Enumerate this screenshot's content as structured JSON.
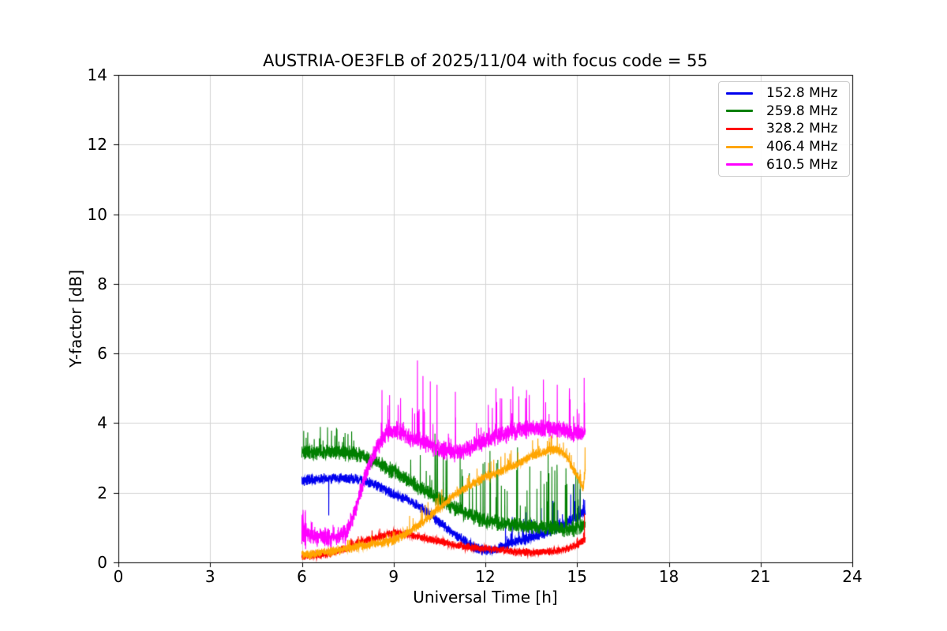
{
  "chart_data": {
    "type": "line",
    "title": "AUSTRIA-OE3FLB of 2025/11/04 with focus code = 55",
    "xlabel": "Universal Time [h]",
    "ylabel": "Y-factor [dB]",
    "xlim": [
      0,
      24
    ],
    "ylim": [
      0,
      14
    ],
    "xticks": [
      0,
      3,
      6,
      9,
      12,
      15,
      18,
      21,
      24
    ],
    "yticks": [
      0,
      2,
      4,
      6,
      8,
      10,
      12,
      14
    ],
    "grid": true,
    "grid_color": "#d4d4d4",
    "axis_color": "#000000",
    "legend_position": "upper right",
    "time_range": [
      6.0,
      15.27
    ],
    "series": [
      {
        "name": "152.8 MHz",
        "color": "#0000ee",
        "trend": [
          [
            6,
            2.35
          ],
          [
            6.5,
            2.4
          ],
          [
            7,
            2.4
          ],
          [
            7.5,
            2.4
          ],
          [
            8,
            2.35
          ],
          [
            8.5,
            2.2
          ],
          [
            9,
            1.95
          ],
          [
            9.5,
            1.8
          ],
          [
            10,
            1.5
          ],
          [
            10.5,
            1.15
          ],
          [
            11,
            0.8
          ],
          [
            11.5,
            0.5
          ],
          [
            11.9,
            0.35
          ],
          [
            12.3,
            0.35
          ],
          [
            12.7,
            0.5
          ],
          [
            13,
            0.6
          ],
          [
            13.5,
            0.7
          ],
          [
            14,
            0.85
          ],
          [
            14.5,
            1.05
          ],
          [
            15,
            1.3
          ],
          [
            15.27,
            1.5
          ]
        ],
        "noise": 0.17,
        "spikes": [
          {
            "t0": 12.6,
            "t1": 15.27,
            "p": 0.045,
            "amp": 0.85
          }
        ],
        "peaks": [
          [
            6.88,
            1.35
          ],
          [
            14.9,
            2.25
          ],
          [
            15.1,
            2.1
          ]
        ]
      },
      {
        "name": "259.8 MHz",
        "color": "#007f00",
        "trend": [
          [
            6,
            3.15
          ],
          [
            7,
            3.15
          ],
          [
            7.6,
            3.15
          ],
          [
            8,
            3.05
          ],
          [
            8.5,
            2.85
          ],
          [
            9,
            2.6
          ],
          [
            9.5,
            2.35
          ],
          [
            10,
            2.05
          ],
          [
            10.5,
            1.8
          ],
          [
            11,
            1.55
          ],
          [
            11.5,
            1.35
          ],
          [
            12,
            1.2
          ],
          [
            12.5,
            1.1
          ],
          [
            13,
            1.05
          ],
          [
            13.5,
            1.0
          ],
          [
            14,
            1.0
          ],
          [
            14.5,
            0.95
          ],
          [
            15,
            0.95
          ],
          [
            15.27,
            1.1
          ]
        ],
        "noise": 0.25,
        "spikes": [
          {
            "t0": 6.0,
            "t1": 7.7,
            "p": 0.07,
            "amp": 0.75
          },
          {
            "t0": 9.5,
            "t1": 15.27,
            "p": 0.05,
            "amp": 1.85
          }
        ],
        "peaks": [
          [
            12.15,
            3.2
          ],
          [
            13.05,
            3.3
          ],
          [
            14.05,
            3.1
          ]
        ]
      },
      {
        "name": "328.2 MHz",
        "color": "#ff0000",
        "trend": [
          [
            6,
            0.18
          ],
          [
            6.5,
            0.2
          ],
          [
            7,
            0.28
          ],
          [
            7.5,
            0.4
          ],
          [
            8,
            0.6
          ],
          [
            8.5,
            0.72
          ],
          [
            9,
            0.85
          ],
          [
            9.5,
            0.8
          ],
          [
            10,
            0.7
          ],
          [
            10.5,
            0.6
          ],
          [
            11,
            0.5
          ],
          [
            11.5,
            0.44
          ],
          [
            12,
            0.4
          ],
          [
            12.5,
            0.35
          ],
          [
            13,
            0.3
          ],
          [
            13.5,
            0.28
          ],
          [
            14,
            0.3
          ],
          [
            14.5,
            0.35
          ],
          [
            15,
            0.5
          ],
          [
            15.27,
            0.65
          ]
        ],
        "noise": 0.13,
        "spikes": [
          {
            "t0": 7.6,
            "t1": 8.6,
            "p": 0.06,
            "amp": 0.25
          },
          {
            "t0": 14.9,
            "t1": 15.27,
            "p": 0.05,
            "amp": 0.3
          }
        ],
        "peaks": [
          [
            15.24,
            1.4
          ]
        ]
      },
      {
        "name": "406.4 MHz",
        "color": "#ffa500",
        "trend": [
          [
            6,
            0.22
          ],
          [
            6.5,
            0.26
          ],
          [
            7,
            0.32
          ],
          [
            7.5,
            0.38
          ],
          [
            8,
            0.48
          ],
          [
            8.5,
            0.55
          ],
          [
            9,
            0.62
          ],
          [
            9.5,
            0.85
          ],
          [
            10,
            1.2
          ],
          [
            10.5,
            1.55
          ],
          [
            11,
            1.95
          ],
          [
            11.5,
            2.2
          ],
          [
            12,
            2.45
          ],
          [
            12.5,
            2.6
          ],
          [
            13,
            2.8
          ],
          [
            13.5,
            3.05
          ],
          [
            14,
            3.2
          ],
          [
            14.3,
            3.25
          ],
          [
            14.6,
            3.1
          ],
          [
            15,
            2.5
          ],
          [
            15.2,
            2.15
          ],
          [
            15.27,
            2.6
          ]
        ],
        "noise": 0.15,
        "spikes": [
          {
            "t0": 7.3,
            "t1": 9.5,
            "p": 0.05,
            "amp": 0.3
          },
          {
            "t0": 9.5,
            "t1": 15.27,
            "p": 0.045,
            "amp": 0.5
          }
        ],
        "peaks": [
          [
            15.26,
            3.3
          ]
        ]
      },
      {
        "name": "610.5 MHz",
        "color": "#ff00ff",
        "trend": [
          [
            6,
            1.15
          ],
          [
            6.15,
            0.85
          ],
          [
            6.5,
            0.72
          ],
          [
            7,
            0.7
          ],
          [
            7.4,
            0.8
          ],
          [
            7.5,
            0.95
          ],
          [
            7.75,
            1.5
          ],
          [
            8,
            2.3
          ],
          [
            8.25,
            2.9
          ],
          [
            8.5,
            3.35
          ],
          [
            8.75,
            3.65
          ],
          [
            9,
            3.8
          ],
          [
            9.25,
            3.75
          ],
          [
            9.5,
            3.6
          ],
          [
            10,
            3.45
          ],
          [
            10.5,
            3.25
          ],
          [
            11,
            3.15
          ],
          [
            11.5,
            3.3
          ],
          [
            12,
            3.5
          ],
          [
            12.5,
            3.65
          ],
          [
            13,
            3.75
          ],
          [
            13.5,
            3.85
          ],
          [
            14,
            3.85
          ],
          [
            14.5,
            3.8
          ],
          [
            15,
            3.7
          ],
          [
            15.27,
            3.8
          ]
        ],
        "noise": 0.3,
        "noise_segments": [
          {
            "t0": 6.0,
            "t1": 6.15,
            "amp": 0.7
          }
        ],
        "spikes": [
          {
            "t0": 6.0,
            "t1": 7.5,
            "p": 0.04,
            "amp": 0.45
          },
          {
            "t0": 8.4,
            "t1": 15.27,
            "p": 0.04,
            "amp": 1.1
          }
        ],
        "peaks": [
          [
            8.62,
            4.95
          ],
          [
            8.87,
            4.8
          ],
          [
            9.78,
            5.8
          ],
          [
            9.96,
            5.35
          ],
          [
            10.2,
            5.2
          ],
          [
            10.42,
            5.1
          ],
          [
            11.02,
            4.9
          ],
          [
            12.35,
            5.0
          ],
          [
            12.9,
            5.05
          ],
          [
            13.35,
            4.95
          ],
          [
            13.9,
            5.25
          ],
          [
            14.35,
            5.1
          ],
          [
            14.75,
            5.0
          ],
          [
            15.23,
            5.3
          ]
        ]
      }
    ]
  }
}
